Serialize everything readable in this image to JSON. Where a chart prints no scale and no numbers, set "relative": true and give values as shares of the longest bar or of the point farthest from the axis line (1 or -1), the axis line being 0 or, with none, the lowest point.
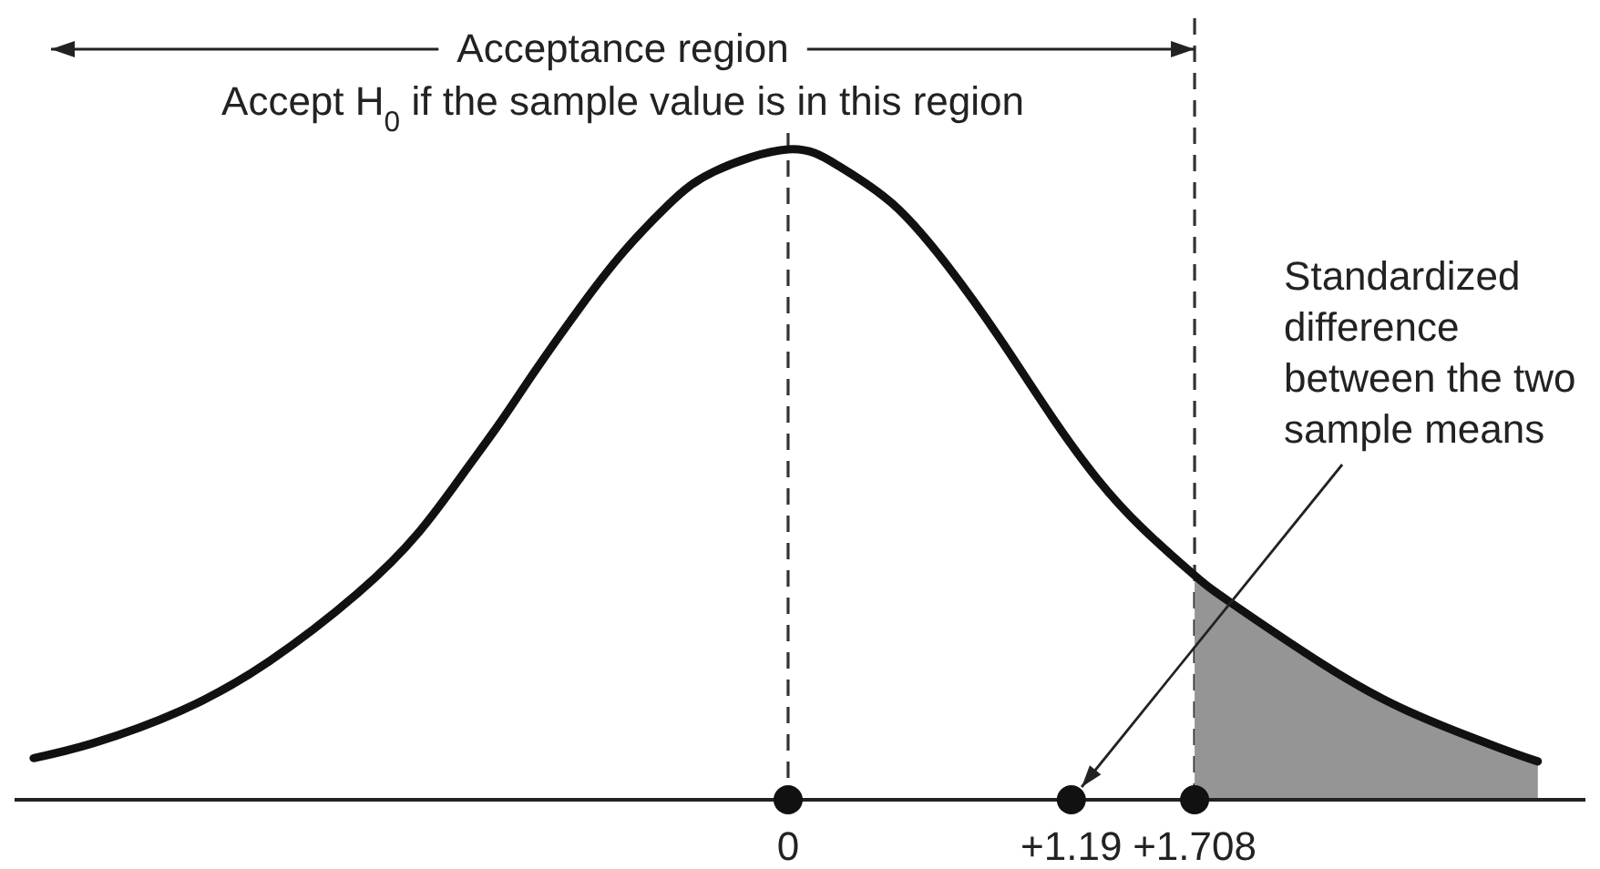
{
  "chart_data": {
    "type": "line",
    "relative": true,
    "tick_labels": "x",
    "annotations": [
      "Acceptance region",
      "Accept H$_{0}$ if the sample value is in this region",
      "Standardized difference between the two sample means"
    ],
    "xlim": [
      -3.25,
      3.35
    ],
    "xticks": [
      {
        "value": 0,
        "label": "0"
      },
      {
        "value": 1.19,
        "label": "+1.19"
      },
      {
        "value": 1.708,
        "label": "+1.708"
      }
    ],
    "series": [
      {
        "color": "#111111",
        "x": [
          -3.17,
          -2.92,
          -2.55,
          -2.18,
          -1.81,
          -1.55,
          -1.36,
          -1.21,
          -1.06,
          -0.87,
          -0.69,
          -0.5,
          -0.31,
          0,
          0.21,
          0.44,
          0.67,
          0.89,
          1.11,
          1.3,
          1.49,
          1.708,
          1.86,
          2.24,
          2.6,
          2.98,
          3.15
        ],
        "values": [
          0.064,
          0.087,
          0.137,
          0.213,
          0.317,
          0.412,
          0.504,
          0.58,
          0.661,
          0.759,
          0.843,
          0.916,
          0.966,
          1,
          0.975,
          0.916,
          0.821,
          0.709,
          0.588,
          0.493,
          0.417,
          0.345,
          0.303,
          0.21,
          0.137,
          0.081,
          0.059
        ]
      },
      {
        "type": "area",
        "color": "#959595",
        "x": [
          1.708,
          1.86,
          2.24,
          2.6,
          2.98,
          3.15
        ],
        "values": [
          0.345,
          0.303,
          0.21,
          0.137,
          0.081,
          0.059
        ]
      },
      {
        "type": "scatter",
        "color": "#111111",
        "marker": "circle",
        "x": [
          0,
          1.19,
          1.708
        ],
        "values": [
          0,
          0,
          0
        ]
      }
    ],
    "ref_lines": [
      {
        "axis": "x",
        "value": 0,
        "line_style": "dashed"
      },
      {
        "axis": "x",
        "value": 1.708,
        "line_style": "dashed"
      }
    ]
  }
}
